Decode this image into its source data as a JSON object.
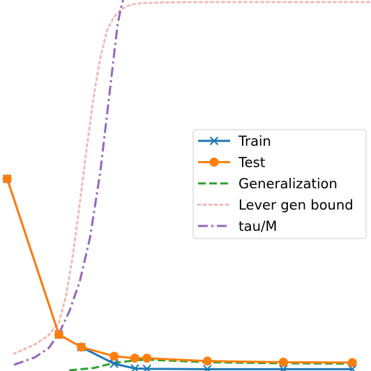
{
  "chart_data": {
    "type": "line",
    "xlim": [
      0,
      10
    ],
    "ylim": [
      0,
      1
    ],
    "grid": false,
    "legend_position": "center-right",
    "series": [
      {
        "name": "Train",
        "color": "#1f77b4",
        "dash": "solid",
        "marker": "x",
        "x": [
          -0.5,
          1.0,
          1.65,
          2.6,
          3.2,
          3.55,
          5.3,
          7.5,
          9.5
        ],
        "y": [
          0.52,
          0.097,
          0.063,
          0.018,
          0.005,
          0.004,
          0.003,
          0.003,
          0.003
        ]
      },
      {
        "name": "Test",
        "color": "#ff7f0e",
        "dash": "solid",
        "marker": "o",
        "x": [
          -0.5,
          1.0,
          1.65,
          2.6,
          3.2,
          3.55,
          5.3,
          7.5,
          9.5
        ],
        "y": [
          0.52,
          0.097,
          0.063,
          0.038,
          0.033,
          0.033,
          0.025,
          0.022,
          0.021
        ]
      },
      {
        "name": "Generalization",
        "color": "#2ca02c",
        "dash": "dashed",
        "marker": "none",
        "x": [
          1.3,
          2.0,
          2.6,
          3.2,
          3.55,
          5.3,
          7.5,
          9.5
        ],
        "y": [
          0.0,
          0.006,
          0.02,
          0.027,
          0.029,
          0.022,
          0.019,
          0.018
        ]
      },
      {
        "name": "Lever gen bound",
        "color": "#f4b8b8",
        "dash": "dotted",
        "marker": "none",
        "x": [
          -0.3,
          0.3,
          0.7,
          1.0,
          1.2,
          1.4,
          1.6,
          1.8,
          2.0,
          2.2,
          2.4,
          2.6,
          2.8,
          3.0,
          3.2,
          3.4,
          3.6,
          4.0,
          5.0,
          7.0,
          10.0
        ],
        "y": [
          0.045,
          0.07,
          0.095,
          0.13,
          0.2,
          0.31,
          0.45,
          0.6,
          0.74,
          0.85,
          0.925,
          0.96,
          0.98,
          0.99,
          0.995,
          0.997,
          0.998,
          0.999,
          1.0,
          1.0,
          1.0
        ]
      },
      {
        "name": "tau/M",
        "color": "#9467bd",
        "dash": "dashdot",
        "marker": "none",
        "x": [
          -0.3,
          0.3,
          0.7,
          1.0,
          1.3,
          1.6,
          1.9,
          2.2,
          2.45,
          2.6,
          2.7,
          2.8,
          2.9
        ],
        "y": [
          0.015,
          0.035,
          0.06,
          0.1,
          0.16,
          0.24,
          0.36,
          0.54,
          0.74,
          0.86,
          0.94,
          0.985,
          1.02
        ]
      }
    ]
  }
}
